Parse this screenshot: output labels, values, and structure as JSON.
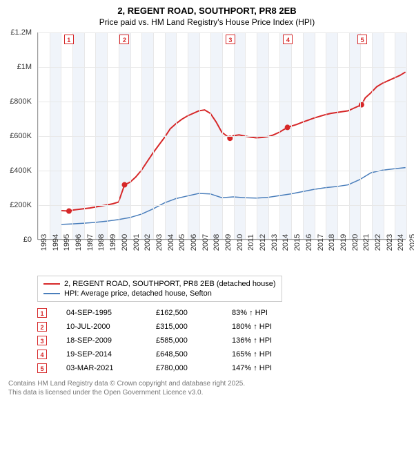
{
  "title": "2, REGENT ROAD, SOUTHPORT, PR8 2EB",
  "subtitle": "Price paid vs. HM Land Registry's House Price Index (HPI)",
  "chart": {
    "type": "line",
    "background_color": "#ffffff",
    "grid_color": "#e8e8e8",
    "axis_color": "#999999",
    "band_color": "#f0f4fa",
    "y": {
      "min": 0,
      "max": 1200000,
      "step": 200000,
      "format": "money-short",
      "ticks": [
        "£0",
        "£200K",
        "£400K",
        "£600K",
        "£800K",
        "£1M",
        "£1.2M"
      ]
    },
    "x": {
      "min": 1993,
      "max": 2025,
      "years": [
        1993,
        1994,
        1995,
        1996,
        1997,
        1998,
        1999,
        2000,
        2001,
        2002,
        2003,
        2004,
        2005,
        2006,
        2007,
        2008,
        2009,
        2010,
        2011,
        2012,
        2013,
        2014,
        2015,
        2016,
        2017,
        2018,
        2019,
        2020,
        2021,
        2022,
        2023,
        2024,
        2025
      ]
    },
    "series": [
      {
        "name": "property",
        "label": "2, REGENT ROAD, SOUTHPORT, PR8 2EB (detached house)",
        "color": "#d62728",
        "width": 2,
        "points": [
          [
            1995.0,
            165000
          ],
          [
            1995.68,
            162500
          ],
          [
            1996.0,
            168000
          ],
          [
            1996.5,
            172000
          ],
          [
            1997.0,
            176000
          ],
          [
            1997.5,
            180000
          ],
          [
            1998.0,
            186000
          ],
          [
            1998.5,
            192000
          ],
          [
            1999.0,
            198000
          ],
          [
            1999.5,
            205000
          ],
          [
            2000.0,
            215000
          ],
          [
            2000.52,
            315000
          ],
          [
            2001.0,
            330000
          ],
          [
            2001.5,
            360000
          ],
          [
            2002.0,
            400000
          ],
          [
            2002.5,
            450000
          ],
          [
            2003.0,
            500000
          ],
          [
            2003.5,
            545000
          ],
          [
            2004.0,
            590000
          ],
          [
            2004.5,
            640000
          ],
          [
            2005.0,
            670000
          ],
          [
            2005.5,
            695000
          ],
          [
            2006.0,
            715000
          ],
          [
            2006.5,
            730000
          ],
          [
            2007.0,
            745000
          ],
          [
            2007.5,
            750000
          ],
          [
            2008.0,
            730000
          ],
          [
            2008.5,
            680000
          ],
          [
            2009.0,
            620000
          ],
          [
            2009.71,
            585000
          ],
          [
            2010.0,
            600000
          ],
          [
            2010.5,
            605000
          ],
          [
            2011.0,
            598000
          ],
          [
            2011.5,
            592000
          ],
          [
            2012.0,
            588000
          ],
          [
            2012.5,
            590000
          ],
          [
            2013.0,
            595000
          ],
          [
            2013.5,
            605000
          ],
          [
            2014.0,
            620000
          ],
          [
            2014.72,
            648500
          ],
          [
            2015.0,
            655000
          ],
          [
            2015.5,
            665000
          ],
          [
            2016.0,
            678000
          ],
          [
            2016.5,
            690000
          ],
          [
            2017.0,
            702000
          ],
          [
            2017.5,
            712000
          ],
          [
            2018.0,
            722000
          ],
          [
            2018.5,
            730000
          ],
          [
            2019.0,
            735000
          ],
          [
            2019.5,
            740000
          ],
          [
            2020.0,
            745000
          ],
          [
            2020.5,
            760000
          ],
          [
            2021.17,
            780000
          ],
          [
            2021.5,
            820000
          ],
          [
            2022.0,
            850000
          ],
          [
            2022.5,
            885000
          ],
          [
            2023.0,
            905000
          ],
          [
            2023.5,
            920000
          ],
          [
            2024.0,
            935000
          ],
          [
            2024.5,
            950000
          ],
          [
            2025.0,
            970000
          ]
        ],
        "sale_dots": [
          [
            1995.68,
            162500
          ],
          [
            2000.52,
            315000
          ],
          [
            2009.71,
            585000
          ],
          [
            2014.72,
            648500
          ],
          [
            2021.17,
            780000
          ]
        ]
      },
      {
        "name": "hpi",
        "label": "HPI: Average price, detached house, Sefton",
        "color": "#4a7ebb",
        "width": 1.5,
        "points": [
          [
            1995.0,
            85000
          ],
          [
            1996.0,
            88000
          ],
          [
            1997.0,
            92000
          ],
          [
            1998.0,
            97000
          ],
          [
            1999.0,
            104000
          ],
          [
            2000.0,
            113000
          ],
          [
            2001.0,
            125000
          ],
          [
            2002.0,
            145000
          ],
          [
            2003.0,
            175000
          ],
          [
            2004.0,
            210000
          ],
          [
            2005.0,
            235000
          ],
          [
            2006.0,
            250000
          ],
          [
            2007.0,
            265000
          ],
          [
            2008.0,
            262000
          ],
          [
            2009.0,
            240000
          ],
          [
            2010.0,
            245000
          ],
          [
            2011.0,
            240000
          ],
          [
            2012.0,
            238000
          ],
          [
            2013.0,
            242000
          ],
          [
            2014.0,
            252000
          ],
          [
            2015.0,
            262000
          ],
          [
            2016.0,
            275000
          ],
          [
            2017.0,
            288000
          ],
          [
            2018.0,
            298000
          ],
          [
            2019.0,
            305000
          ],
          [
            2020.0,
            315000
          ],
          [
            2021.0,
            345000
          ],
          [
            2022.0,
            385000
          ],
          [
            2023.0,
            400000
          ],
          [
            2024.0,
            408000
          ],
          [
            2025.0,
            415000
          ]
        ]
      }
    ],
    "markers": [
      {
        "n": "1",
        "year": 1995.68
      },
      {
        "n": "2",
        "year": 2000.52
      },
      {
        "n": "3",
        "year": 2009.71
      },
      {
        "n": "4",
        "year": 2014.72
      },
      {
        "n": "5",
        "year": 2021.17
      }
    ]
  },
  "sales": [
    {
      "n": "1",
      "date": "04-SEP-1995",
      "price": "£162,500",
      "pct": "83% ↑ HPI"
    },
    {
      "n": "2",
      "date": "10-JUL-2000",
      "price": "£315,000",
      "pct": "180% ↑ HPI"
    },
    {
      "n": "3",
      "date": "18-SEP-2009",
      "price": "£585,000",
      "pct": "136% ↑ HPI"
    },
    {
      "n": "4",
      "date": "19-SEP-2014",
      "price": "£648,500",
      "pct": "165% ↑ HPI"
    },
    {
      "n": "5",
      "date": "03-MAR-2021",
      "price": "£780,000",
      "pct": "147% ↑ HPI"
    }
  ],
  "footer1": "Contains HM Land Registry data © Crown copyright and database right 2025.",
  "footer2": "This data is licensed under the Open Government Licence v3.0."
}
